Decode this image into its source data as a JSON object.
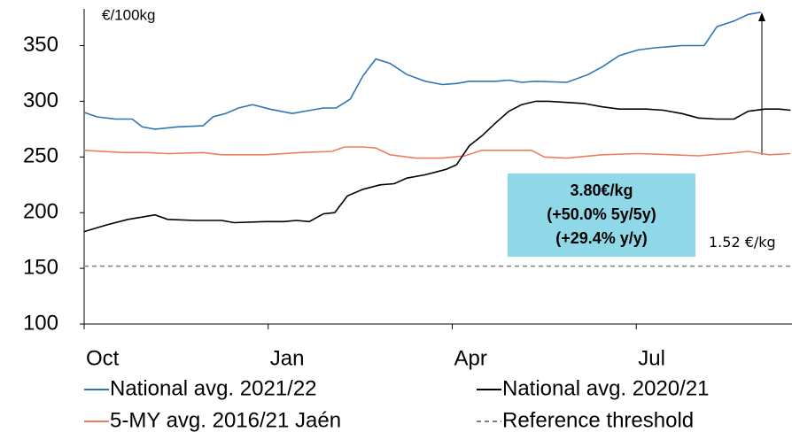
{
  "chart_data": {
    "type": "line",
    "y_axis_label": "€/100kg",
    "xlim": [
      0,
      50
    ],
    "xticks": [
      {
        "value": 0,
        "label": "Oct"
      },
      {
        "value": 13,
        "label": "Jan"
      },
      {
        "value": 26,
        "label": "Apr"
      },
      {
        "value": 39,
        "label": "Jul"
      }
    ],
    "ylim": [
      100,
      383
    ],
    "yticks": [
      100,
      150,
      200,
      250,
      300,
      350
    ],
    "series": [
      {
        "name": "National avg. 2021/22",
        "color": "#2e75b6",
        "x": [
          0,
          0.9,
          2.2,
          3.4,
          4.1,
          5,
          6.6,
          8.4,
          9.1,
          10,
          10.9,
          11.9,
          13.1,
          14.7,
          16,
          16.9,
          17.8,
          18.8,
          19.7,
          20.6,
          21.6,
          22.8,
          24.1,
          25.3,
          26.3,
          27.2,
          29.1,
          30,
          30.9,
          31.9,
          34.1,
          35.6,
          36.6,
          37.8,
          39.1,
          40.3,
          42.2,
          43.8,
          44.7,
          45.9,
          46.9,
          47.8
        ],
        "values": [
          290,
          286,
          284,
          284,
          277,
          275,
          277,
          278,
          286,
          289,
          294,
          297,
          293,
          289,
          292,
          294,
          294,
          302,
          323,
          338,
          334,
          324,
          318,
          315,
          316,
          318,
          318,
          319,
          317,
          318,
          317,
          324,
          331,
          341,
          346,
          348,
          350,
          350,
          367,
          372,
          378,
          380
        ]
      },
      {
        "name": "National avg. 2020/21",
        "color": "#000000",
        "x": [
          0,
          1.6,
          3.1,
          4.1,
          5,
          5.9,
          7.8,
          9.7,
          10.6,
          12.8,
          14.1,
          15,
          15.9,
          16.9,
          17.7,
          18.6,
          19.7,
          20.9,
          21.9,
          22.8,
          24.1,
          25,
          25.6,
          26.3,
          27.2,
          28.1,
          29.1,
          30,
          30.9,
          31.9,
          32.8,
          34.1,
          35.3,
          36.6,
          37.8,
          39.7,
          40.9,
          42.2,
          43.4,
          44.7,
          45.9,
          46.9,
          48.1,
          49.1,
          49.9
        ],
        "values": [
          183,
          189,
          194,
          196,
          198,
          194,
          193,
          193,
          191,
          192,
          192,
          193,
          192,
          199,
          200,
          215,
          221,
          225,
          226,
          231,
          234,
          237,
          239,
          243,
          260,
          269,
          281,
          291,
          297,
          300,
          300,
          299,
          298,
          295,
          293,
          293,
          292,
          289,
          285,
          284,
          284,
          291,
          293,
          293,
          292
        ]
      },
      {
        "name": "5-MY avg. 2016/21 Jaén",
        "color": "#ed7d61",
        "x": [
          0,
          2.8,
          4.4,
          5.9,
          8.4,
          9.7,
          12.8,
          15.3,
          17.5,
          18.4,
          19.7,
          20.6,
          21.6,
          23.4,
          25.3,
          26.9,
          28.1,
          29.7,
          31.6,
          32.5,
          34.1,
          36.6,
          39.1,
          41.6,
          43.4,
          45.3,
          46.9,
          48.4,
          49.9
        ],
        "values": [
          256,
          254,
          254,
          253,
          254,
          252,
          252,
          254,
          255,
          259,
          259,
          258,
          252,
          249,
          249,
          251,
          256,
          256,
          256,
          250,
          249,
          252,
          253,
          252,
          251,
          253,
          255,
          252,
          253
        ]
      }
    ],
    "reference": {
      "name": "Reference threshold",
      "value": 152,
      "label": "1.52 €/kg",
      "color": "#7f7f7f"
    },
    "annotation": [
      "3.80€/kg",
      "(+50.0% 5y/5y)",
      "(+29.4% y/y)"
    ],
    "annotation_color": "#8fd8e8"
  }
}
